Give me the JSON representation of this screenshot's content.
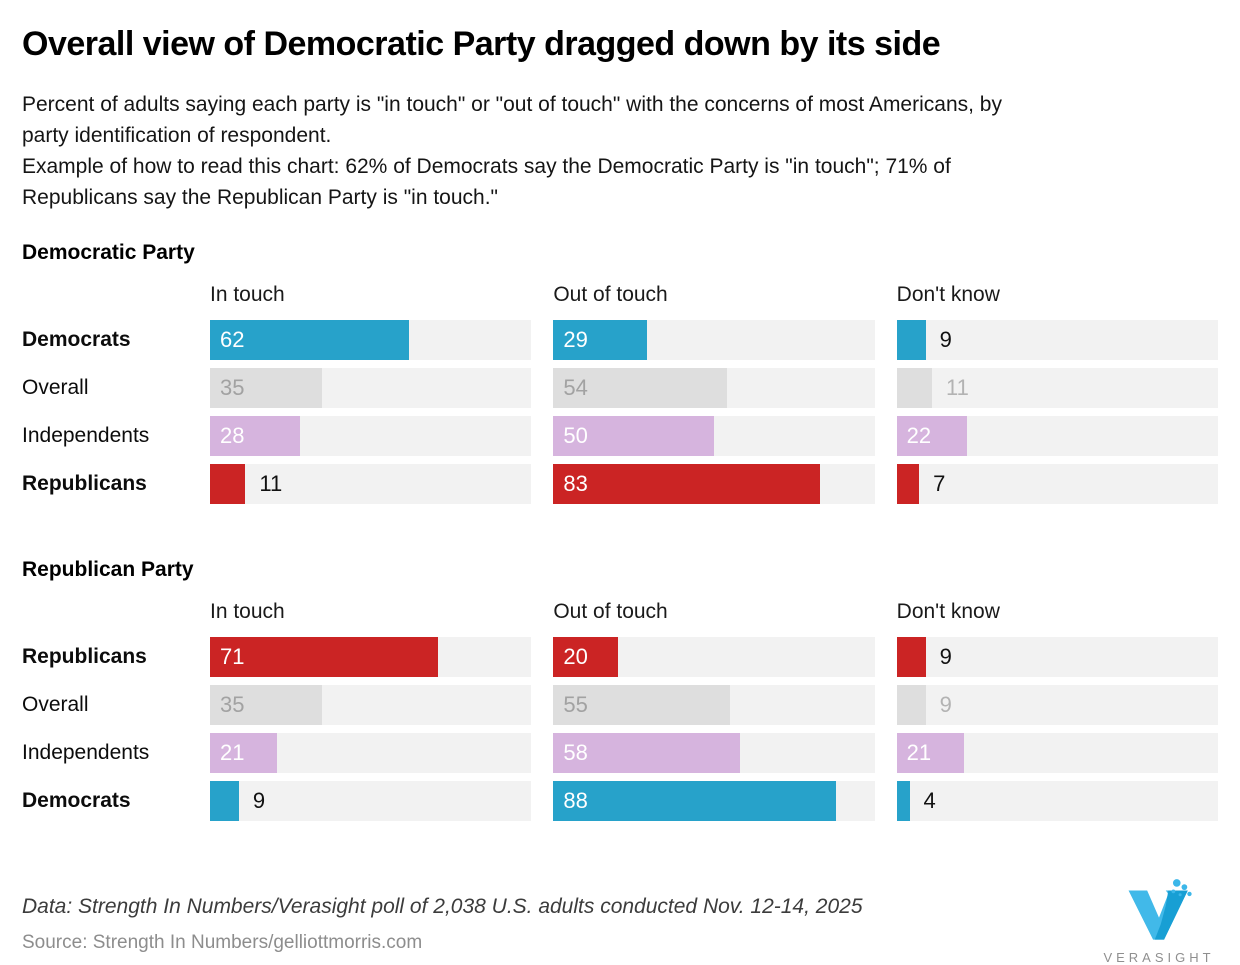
{
  "header": {
    "title": "Overall view of Democratic Party dragged down by its side",
    "subtitle": "Percent of adults saying each party is \"in touch\" or \"out of touch\" with the concerns of most Americans, by party identification of respondent.",
    "reading_example": "Example of how to read this chart: 62% of Democrats say the Democratic Party is \"in touch\"; 71% of Republicans say the Republican Party is \"in touch.\""
  },
  "chart_data": {
    "type": "bar",
    "unit": "percent of adults",
    "xlim": [
      0,
      100
    ],
    "columns": [
      "In touch",
      "Out of touch",
      "Don't know"
    ],
    "sections": [
      {
        "title": "Democratic Party",
        "rows": [
          {
            "label": "Democrats",
            "bold": true,
            "muted": false,
            "color": "#27a2ca",
            "values": [
              62,
              29,
              9
            ]
          },
          {
            "label": "Overall",
            "bold": false,
            "muted": true,
            "color": "#dedede",
            "values": [
              35,
              54,
              11
            ]
          },
          {
            "label": "Independents",
            "bold": false,
            "muted": false,
            "color": "#d6b4de",
            "values": [
              28,
              50,
              22
            ]
          },
          {
            "label": "Republicans",
            "bold": true,
            "muted": false,
            "color": "#cb2424",
            "values": [
              11,
              83,
              7
            ]
          }
        ]
      },
      {
        "title": "Republican Party",
        "rows": [
          {
            "label": "Republicans",
            "bold": true,
            "muted": false,
            "color": "#cb2424",
            "values": [
              71,
              20,
              9
            ]
          },
          {
            "label": "Overall",
            "bold": false,
            "muted": true,
            "color": "#dedede",
            "values": [
              35,
              55,
              9
            ]
          },
          {
            "label": "Independents",
            "bold": false,
            "muted": false,
            "color": "#d6b4de",
            "values": [
              21,
              58,
              21
            ]
          },
          {
            "label": "Democrats",
            "bold": true,
            "muted": false,
            "color": "#27a2ca",
            "values": [
              9,
              88,
              4
            ]
          }
        ]
      }
    ],
    "inside_label_threshold": 15,
    "track_color": "#f2f2f2",
    "accent_colors": {
      "democrat_blue": "#27a2ca",
      "republican_red": "#cb2424",
      "independent_purple": "#d6b4de",
      "overall_gray": "#dedede"
    },
    "legend_position": "none",
    "grid": false
  },
  "footer": {
    "data_note": "Data: Strength In Numbers/Verasight poll of 2,038 U.S. adults conducted Nov. 12-14, 2025",
    "source": "Source: Strength In Numbers/gelliottmorris.com",
    "logo_text": "VERASIGHT"
  }
}
